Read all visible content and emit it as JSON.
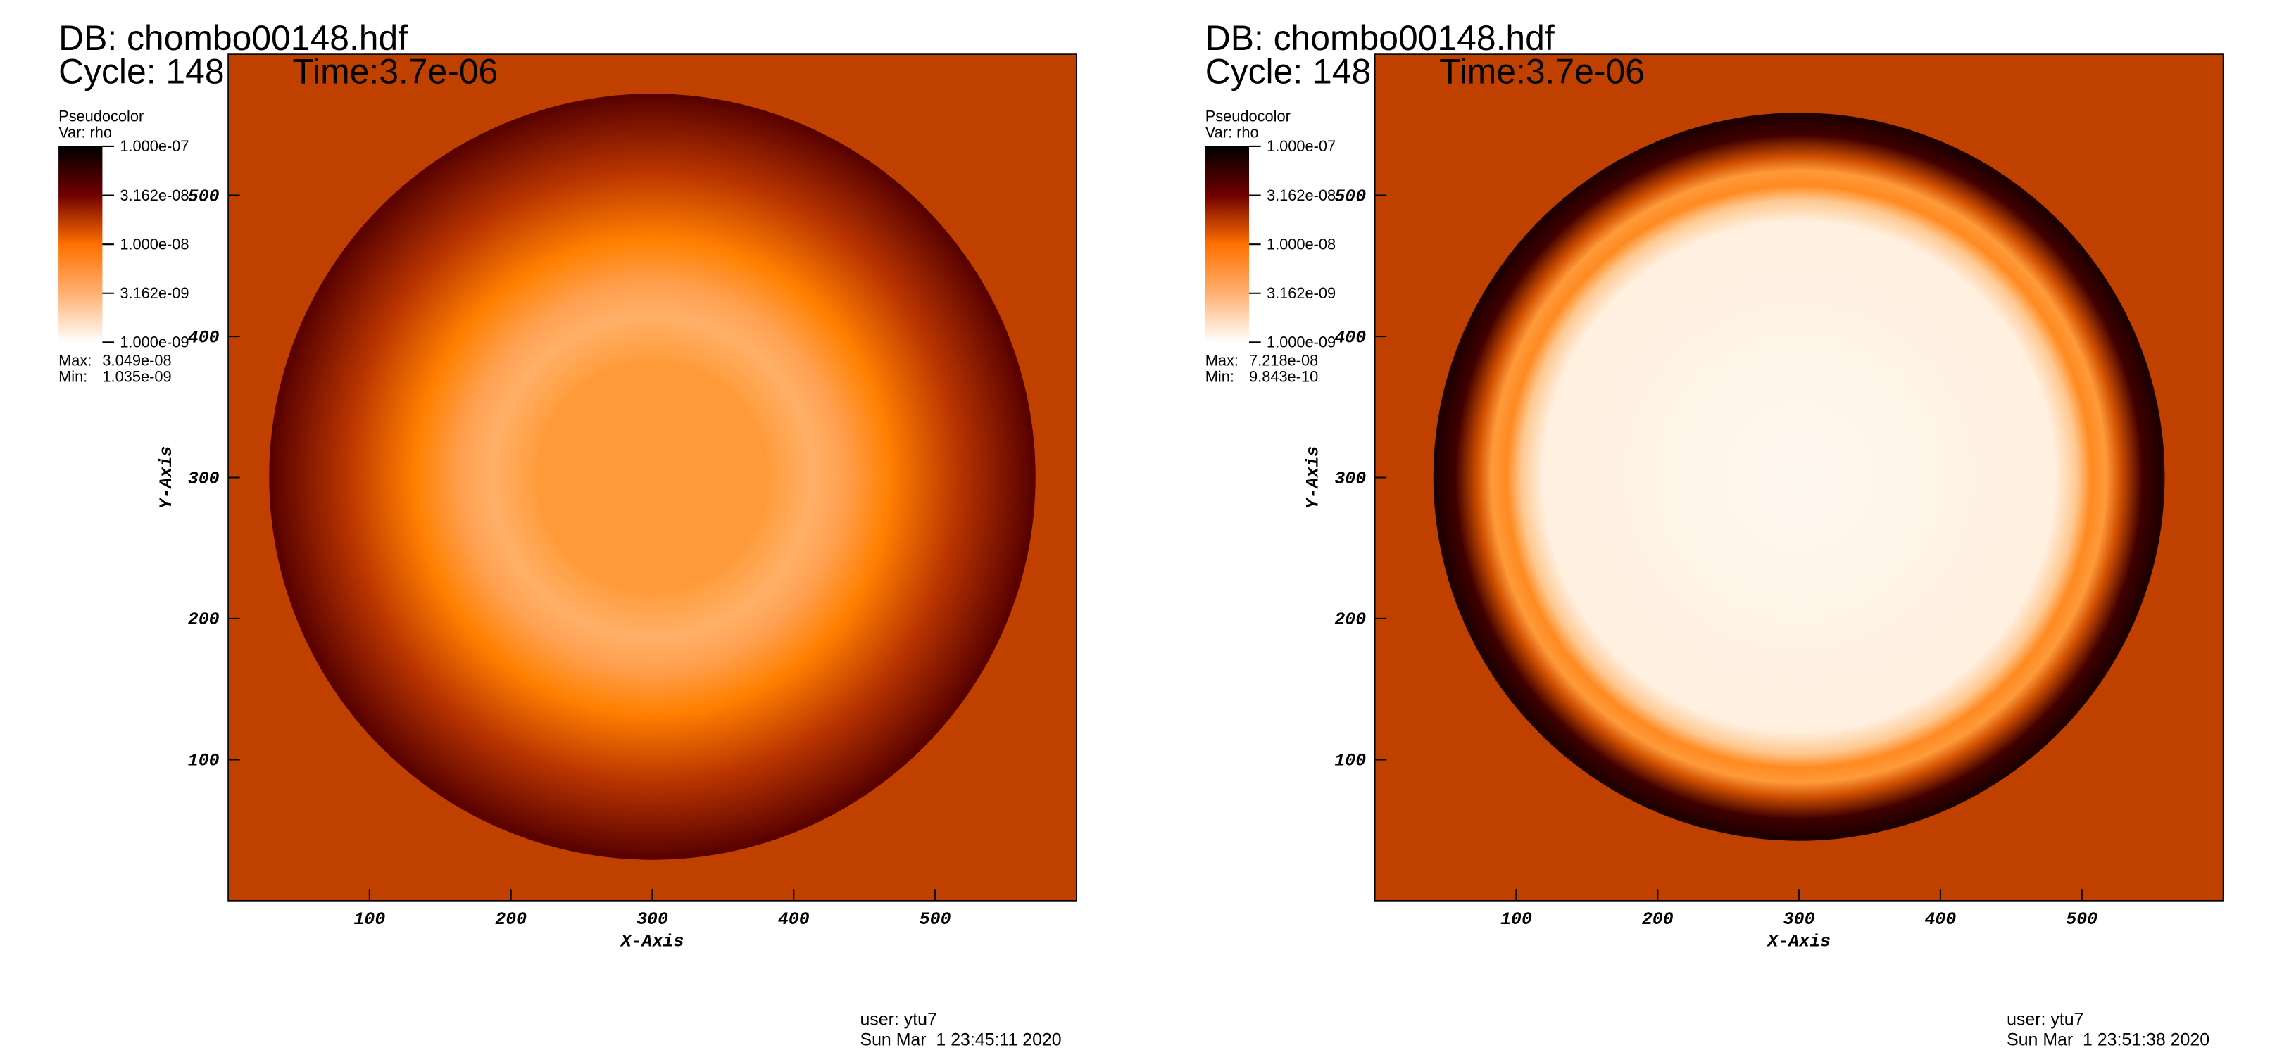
{
  "chart_data": [
    {
      "type": "pseudocolor",
      "title": "DB: chombo00148.hdf",
      "cycle": "Cycle: 148",
      "time": "Time:3.7e-06",
      "legend_title": "Pseudocolor",
      "variable": "Var: rho",
      "colorbar": {
        "lim": [
          1e-09,
          1e-07
        ],
        "log": true,
        "ticks": [
          {
            "value": 1e-07,
            "label": "1.000e-07"
          },
          {
            "value": 3.162e-08,
            "label": "3.162e-08"
          },
          {
            "value": 1e-08,
            "label": "1.000e-08"
          },
          {
            "value": 3.162e-09,
            "label": "3.162e-09"
          },
          {
            "value": 1e-09,
            "label": "1.000e-09"
          }
        ]
      },
      "stats": {
        "labels": [
          "Max:",
          "Min:"
        ],
        "values": [
          3.049e-08,
          1.035e-09
        ],
        "value_labels": [
          "3.049e-08",
          "1.035e-09"
        ]
      },
      "xlabel": "X-Axis",
      "ylabel": "Y-Axis",
      "xlim": [
        0,
        600
      ],
      "ylim": [
        0,
        600
      ],
      "xticks": [
        100,
        200,
        300,
        400,
        500
      ],
      "yticks": [
        100,
        200,
        300,
        400,
        500
      ],
      "user": "user: ytu7",
      "date": "Sun Mar  1 23:45:11 2020"
    },
    {
      "type": "pseudocolor",
      "title": "DB: chombo00148.hdf",
      "cycle": "Cycle: 148",
      "time": "Time:3.7e-06",
      "legend_title": "Pseudocolor",
      "variable": "Var: rho",
      "colorbar": {
        "lim": [
          1e-09,
          1e-07
        ],
        "log": true,
        "ticks": [
          {
            "value": 1e-07,
            "label": "1.000e-07"
          },
          {
            "value": 3.162e-08,
            "label": "3.162e-08"
          },
          {
            "value": 1e-08,
            "label": "1.000e-08"
          },
          {
            "value": 3.162e-09,
            "label": "3.162e-09"
          },
          {
            "value": 1e-09,
            "label": "1.000e-09"
          }
        ]
      },
      "stats": {
        "labels": [
          "Max:",
          "Min:"
        ],
        "values": [
          7.218e-08,
          9.843e-10
        ],
        "value_labels": [
          "7.218e-08",
          "9.843e-10"
        ]
      },
      "xlabel": "X-Axis",
      "ylabel": "Y-Axis",
      "xlim": [
        0,
        600
      ],
      "ylim": [
        0,
        600
      ],
      "xticks": [
        100,
        200,
        300,
        400,
        500
      ],
      "yticks": [
        100,
        200,
        300,
        400,
        500
      ],
      "user": "user: ytu7",
      "date": "Sun Mar  1 23:51:38 2020"
    }
  ]
}
